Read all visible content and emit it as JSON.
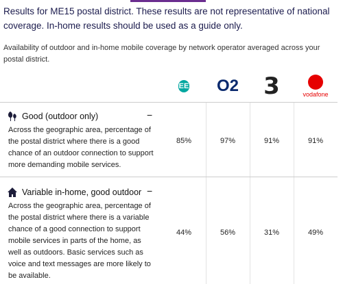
{
  "header": {
    "title": "Results for ME15 postal district. These results are not representative of national coverage. In-home results should be used as a guide only.",
    "subtitle": "Availability of outdoor and in-home mobile coverage by network operator averaged across your postal district."
  },
  "operators": [
    "EE",
    "O2",
    "3",
    "vodafone"
  ],
  "rows": [
    {
      "title": "Good (outdoor only)",
      "toggle": "−",
      "description": "Across the geographic area, percentage of the postal district where there is a good chance of an outdoor connection to support more demanding mobile services.",
      "values": [
        "85%",
        "97%",
        "91%",
        "91%"
      ]
    },
    {
      "title": "Variable in-home, good outdoor",
      "toggle": "−",
      "description": "Across the geographic area, percentage of the postal district where there is a variable chance of a good connection to support mobile services in parts of the home, as well as outdoors. Basic services such as voice and text messages are more likely to be available.",
      "values": [
        "44%",
        "56%",
        "31%",
        "49%"
      ]
    }
  ]
}
